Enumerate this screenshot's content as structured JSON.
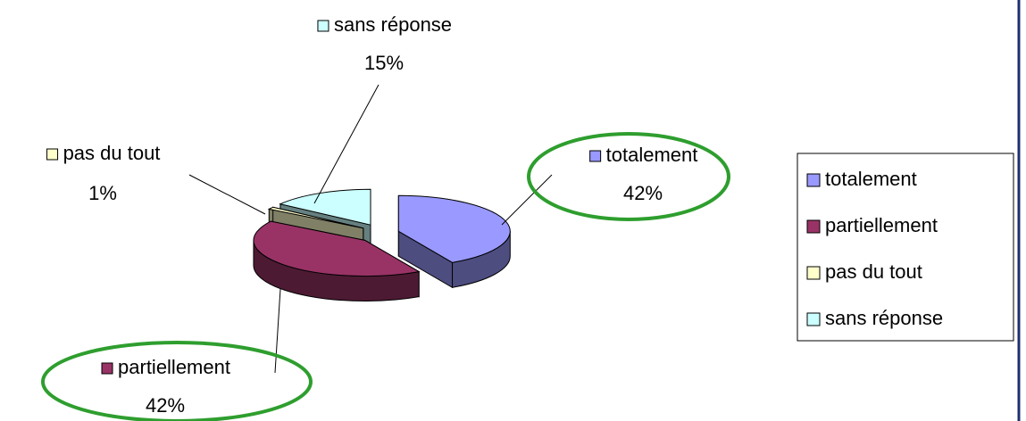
{
  "chart_data": {
    "type": "pie3d",
    "categories": [
      "totalement",
      "partiellement",
      "pas du tout",
      "sans réponse"
    ],
    "values": [
      42,
      42,
      1,
      15
    ],
    "value_labels": [
      "42%",
      "42%",
      "1%",
      "15%"
    ],
    "colors": [
      "#9999ff",
      "#993366",
      "#ffffcc",
      "#ccffff"
    ],
    "legend": "right"
  }
}
